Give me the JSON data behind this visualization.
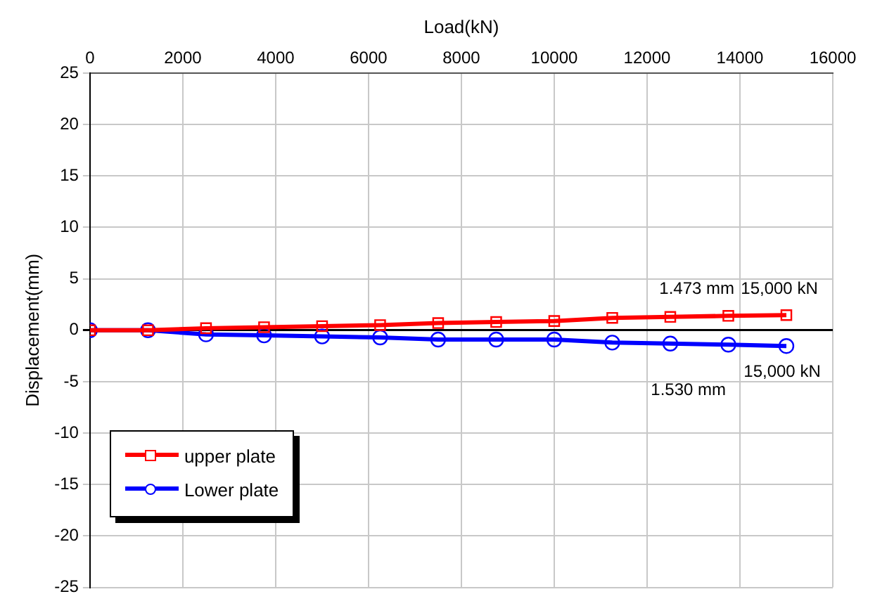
{
  "chart_data": {
    "type": "line",
    "xlabel": "Load(kN)",
    "ylabel": "Displacement(mm)",
    "x": [
      0,
      1250,
      2500,
      3750,
      5000,
      6250,
      7500,
      8750,
      10000,
      11250,
      12500,
      13750,
      15000
    ],
    "series": [
      {
        "name": "upper plate",
        "color": "#ff0000",
        "marker": "square",
        "values": [
          0,
          0,
          0.2,
          0.3,
          0.4,
          0.5,
          0.7,
          0.8,
          0.9,
          1.2,
          1.3,
          1.4,
          1.473
        ]
      },
      {
        "name": "Lower plate",
        "color": "#0000ff",
        "marker": "circle",
        "values": [
          0,
          0,
          -0.4,
          -0.5,
          -0.6,
          -0.7,
          -0.9,
          -0.9,
          -0.9,
          -1.2,
          -1.3,
          -1.4,
          -1.53
        ]
      }
    ],
    "xlim": [
      0,
      16000
    ],
    "xticks": [
      0,
      2000,
      4000,
      6000,
      8000,
      10000,
      12000,
      14000,
      16000
    ],
    "ylim": [
      -25,
      25
    ],
    "yticks": [
      -25,
      -20,
      -15,
      -10,
      -5,
      0,
      5,
      10,
      15,
      20,
      25
    ],
    "grid": true,
    "legend": "bottom left",
    "line_style": "solid",
    "annotations": [
      "1.473 mm",
      "15,000 kN",
      "1.530 mm",
      "15,000 kN"
    ]
  }
}
